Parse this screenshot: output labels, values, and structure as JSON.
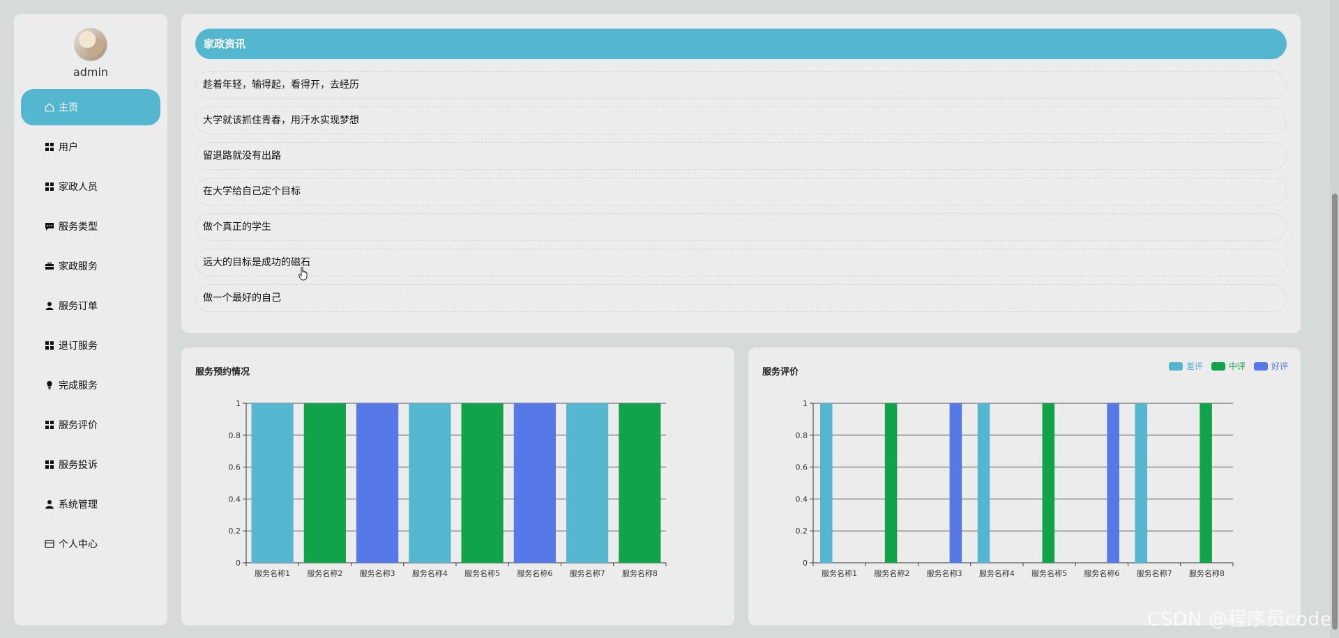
{
  "sidebar": {
    "username": "admin",
    "items": [
      {
        "label": "主页",
        "icon": "home-icon",
        "active": true
      },
      {
        "label": "用户",
        "icon": "grid-icon",
        "active": false
      },
      {
        "label": "家政人员",
        "icon": "grid-icon",
        "active": false
      },
      {
        "label": "服务类型",
        "icon": "message-icon",
        "active": false
      },
      {
        "label": "家政服务",
        "icon": "briefcase-icon",
        "active": false
      },
      {
        "label": "服务订单",
        "icon": "user-icon",
        "active": false
      },
      {
        "label": "退订服务",
        "icon": "grid-icon",
        "active": false
      },
      {
        "label": "完成服务",
        "icon": "bulb-icon",
        "active": false
      },
      {
        "label": "服务评价",
        "icon": "grid-icon",
        "active": false
      },
      {
        "label": "服务投诉",
        "icon": "grid-icon",
        "active": false
      },
      {
        "label": "系统管理",
        "icon": "person-icon",
        "active": false
      },
      {
        "label": "个人中心",
        "icon": "card-icon",
        "active": false
      }
    ]
  },
  "news": {
    "title": "家政资讯",
    "items": [
      "趁着年轻，输得起，看得开，去经历",
      "大学就该抓住青春，用汗水实现梦想",
      "留退路就没有出路",
      "在大学给自己定个目标",
      "做个真正的学生",
      "远大的目标是成功的磁石",
      "做一个最好的自己"
    ]
  },
  "colors": {
    "accent": "#55b6d0",
    "green": "#11a34a",
    "blue": "#5779e8"
  },
  "watermark": "CSDN @程序员code",
  "chart_data": [
    {
      "type": "bar",
      "title": "服务预约情况",
      "categories": [
        "服务名称1",
        "服务名称2",
        "服务名称3",
        "服务名称4",
        "服务名称5",
        "服务名称6",
        "服务名称7",
        "服务名称8"
      ],
      "values": [
        1,
        1,
        1,
        1,
        1,
        1,
        1,
        1
      ],
      "bar_colors": [
        "#55b6d0",
        "#11a34a",
        "#5779e8",
        "#55b6d0",
        "#11a34a",
        "#5779e8",
        "#55b6d0",
        "#11a34a"
      ],
      "ylim": [
        0,
        1
      ],
      "yticks": [
        "0",
        "0.2",
        "0.4",
        "0.6",
        "0.8",
        "1"
      ],
      "grid": true
    },
    {
      "type": "bar",
      "title": "服务评价",
      "categories": [
        "服务名称1",
        "服务名称2",
        "服务名称3",
        "服务名称4",
        "服务名称5",
        "服务名称6",
        "服务名称7",
        "服务名称8"
      ],
      "series": [
        {
          "name": "差评",
          "color": "#55b6d0",
          "values": [
            1,
            0,
            0,
            1,
            0,
            0,
            1,
            0
          ]
        },
        {
          "name": "中评",
          "color": "#11a34a",
          "values": [
            0,
            1,
            0,
            0,
            1,
            0,
            0,
            1
          ]
        },
        {
          "name": "好评",
          "color": "#5779e8",
          "values": [
            0,
            0,
            1,
            0,
            0,
            1,
            0,
            0
          ]
        }
      ],
      "ylim": [
        0,
        1
      ],
      "yticks": [
        "0",
        "0.2",
        "0.4",
        "0.6",
        "0.8",
        "1"
      ],
      "legend": "top-right",
      "grid": true
    }
  ]
}
